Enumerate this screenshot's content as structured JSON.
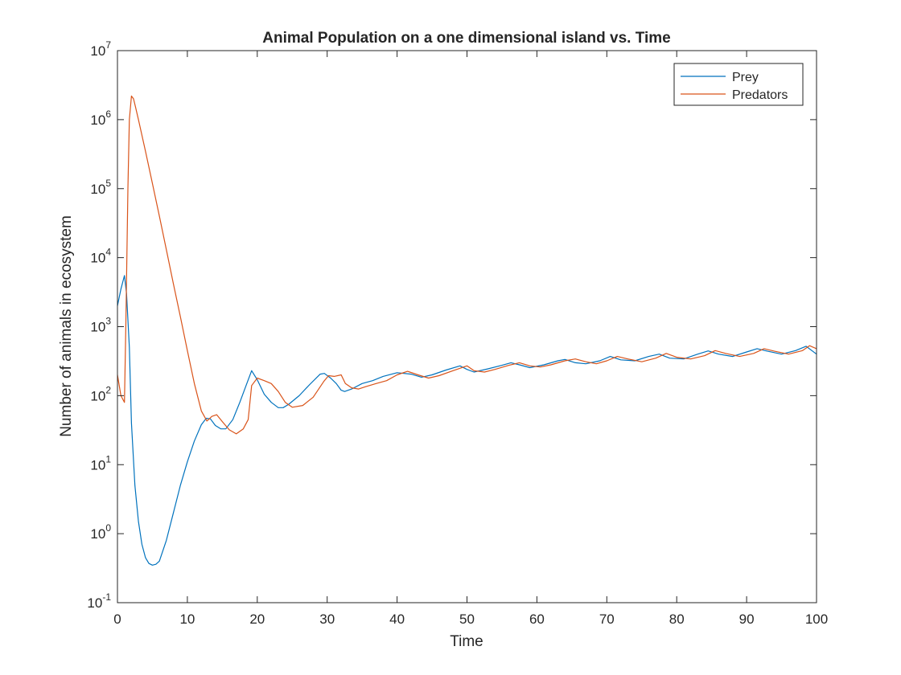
{
  "chart_data": {
    "type": "line",
    "title": "Animal Population on a one dimensional island vs. Time",
    "xlabel": "Time",
    "ylabel": "Number of animals in ecosystem",
    "xlim": [
      0,
      100
    ],
    "ylim": [
      0.1,
      10000000
    ],
    "yscale": "log",
    "grid": false,
    "legend_position": "top-right",
    "x_ticks": [
      0,
      10,
      20,
      30,
      40,
      50,
      60,
      70,
      80,
      90,
      100
    ],
    "x_tick_labels": [
      "0",
      "10",
      "20",
      "30",
      "40",
      "50",
      "60",
      "70",
      "80",
      "90",
      "100"
    ],
    "y_ticks": [
      0.1,
      1,
      10,
      100,
      1000,
      10000,
      100000,
      1000000,
      10000000
    ],
    "y_tick_labels": [
      {
        "base": "10",
        "exp": "-1"
      },
      {
        "base": "10",
        "exp": "0"
      },
      {
        "base": "10",
        "exp": "1"
      },
      {
        "base": "10",
        "exp": "2"
      },
      {
        "base": "10",
        "exp": "3"
      },
      {
        "base": "10",
        "exp": "4"
      },
      {
        "base": "10",
        "exp": "5"
      },
      {
        "base": "10",
        "exp": "6"
      },
      {
        "base": "10",
        "exp": "7"
      }
    ],
    "series": [
      {
        "name": "Prey",
        "color": "#0072BD",
        "x": [
          0,
          0.5,
          1,
          1.3,
          1.7,
          2,
          2.5,
          3,
          3.5,
          4,
          4.5,
          5,
          5.5,
          6,
          7,
          8,
          9,
          10,
          11,
          12,
          12.7,
          13.3,
          14,
          14.8,
          15.5,
          16.5,
          17.5,
          18.5,
          19.2,
          20,
          21,
          22,
          23,
          23.7,
          24.5,
          26,
          27.5,
          29,
          29.6,
          30.5,
          31.3,
          32,
          32.5,
          33.5,
          35,
          36.5,
          38,
          40,
          42,
          43.5,
          45,
          47,
          49,
          50,
          51,
          53,
          55,
          56.3,
          57.5,
          59,
          61,
          63,
          64,
          65.5,
          67,
          69,
          70.5,
          72,
          74,
          76,
          77.5,
          79,
          81,
          83,
          84.5,
          86,
          88,
          90,
          91.5,
          93,
          95,
          97,
          98.5,
          100
        ],
        "y": [
          2000,
          3500,
          5500,
          3000,
          500,
          40,
          5,
          1.5,
          0.7,
          0.45,
          0.37,
          0.35,
          0.36,
          0.4,
          0.8,
          2,
          5,
          11,
          22,
          38,
          47,
          46,
          37,
          33,
          33,
          45,
          80,
          150,
          230,
          170,
          105,
          80,
          67,
          67,
          75,
          100,
          145,
          205,
          210,
          180,
          150,
          120,
          115,
          125,
          150,
          165,
          190,
          215,
          205,
          185,
          200,
          235,
          270,
          240,
          220,
          245,
          275,
          300,
          280,
          255,
          280,
          320,
          335,
          300,
          290,
          320,
          370,
          330,
          320,
          370,
          400,
          350,
          340,
          400,
          445,
          400,
          370,
          430,
          480,
          440,
          400,
          450,
          520,
          400
        ]
      },
      {
        "name": "Predators",
        "color": "#D95319",
        "x": [
          0,
          0.5,
          1,
          1.2,
          1.5,
          1.7,
          2,
          2.3,
          2.6,
          3,
          4,
          5,
          6,
          7,
          8,
          9,
          10,
          11,
          12,
          12.8,
          13.5,
          14.2,
          15,
          16,
          17,
          18,
          18.7,
          19.2,
          20,
          21,
          22,
          23,
          24,
          25,
          26.5,
          28,
          29.5,
          30.2,
          31,
          32,
          32.6,
          33.5,
          34.5,
          35.5,
          37,
          38.5,
          40,
          41.5,
          43,
          44.5,
          46,
          48,
          50,
          51,
          52.5,
          54,
          56,
          57.5,
          59,
          60.5,
          62,
          64,
          65.5,
          67,
          68.5,
          70,
          71.5,
          73,
          75,
          77,
          78.5,
          80,
          82,
          84,
          85.5,
          87,
          89,
          91,
          92.5,
          94,
          96,
          98,
          99,
          100
        ],
        "y": [
          200,
          100,
          80,
          1000,
          100000,
          1000000,
          2200000,
          2000000,
          1500000,
          1000000,
          350000,
          120000,
          40000,
          13000,
          4200,
          1400,
          450,
          150,
          60,
          43,
          50,
          53,
          42,
          32,
          28,
          33,
          45,
          140,
          180,
          165,
          150,
          115,
          80,
          68,
          72,
          95,
          160,
          195,
          190,
          200,
          150,
          130,
          125,
          135,
          150,
          165,
          200,
          225,
          200,
          180,
          195,
          230,
          270,
          230,
          220,
          240,
          275,
          300,
          270,
          260,
          280,
          320,
          340,
          310,
          290,
          320,
          370,
          340,
          310,
          350,
          410,
          360,
          340,
          380,
          450,
          410,
          370,
          410,
          480,
          440,
          400,
          450,
          530,
          480
        ]
      }
    ]
  }
}
